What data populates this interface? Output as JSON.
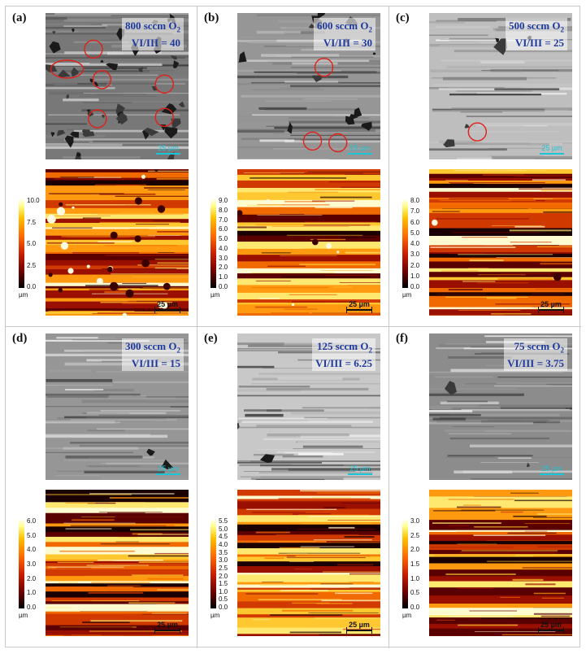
{
  "panels": [
    {
      "label": "(a)",
      "flow": "800 sccm O",
      "sub": "2",
      "ratio": "VI/III = 40",
      "sem_scale": "25 µm",
      "afm_scale": "25 µm",
      "unit": "µm",
      "ticks": [
        "10.0",
        "7.5",
        "5.0",
        "2.5",
        "0.0"
      ],
      "circles": 6,
      "roughness": "high"
    },
    {
      "label": "(b)",
      "flow": "600 sccm O",
      "sub": "2",
      "ratio": "VI/III = 30",
      "sem_scale": "25 µm",
      "afm_scale": "25 µm",
      "unit": "µm",
      "ticks": [
        "9.0",
        "8.0",
        "7.0",
        "6.0",
        "5.0",
        "4.0",
        "3.0",
        "2.0",
        "1.0",
        "0.0"
      ],
      "circles": 3,
      "roughness": "medium"
    },
    {
      "label": "(c)",
      "flow": "500 sccm O",
      "sub": "2",
      "ratio": "VI/III = 25",
      "sem_scale": "25 µm",
      "afm_scale": "25 µm",
      "unit": "µm",
      "ticks": [
        "8.0",
        "7.0",
        "6.0",
        "5.0",
        "4.0",
        "3.0",
        "2.0",
        "1.0",
        "0.0"
      ],
      "circles": 1,
      "roughness": "low"
    },
    {
      "label": "(d)",
      "flow": "300 sccm O",
      "sub": "2",
      "ratio": "VI/III = 15",
      "sem_scale": "25 µm",
      "afm_scale": "25 µm",
      "unit": "µm",
      "ticks": [
        "6.0",
        "5.0",
        "4.0",
        "3.0",
        "2.0",
        "1.0",
        "0.0"
      ],
      "circles": 0,
      "roughness": "smooth"
    },
    {
      "label": "(e)",
      "flow": "125 sccm O",
      "sub": "2",
      "ratio": "VI/III = 6.25",
      "sem_scale": "25 µm",
      "afm_scale": "25 µm",
      "unit": "µm",
      "ticks": [
        "5.5",
        "5.0",
        "4.5",
        "4.0",
        "3.5",
        "3.0",
        "2.5",
        "2.0",
        "1.5",
        "1.0",
        "0.5",
        "0.0"
      ],
      "circles": 0,
      "roughness": "smooth"
    },
    {
      "label": "(f)",
      "flow": "75 sccm O",
      "sub": "2",
      "ratio": "VI/III = 3.75",
      "sem_scale": "25 µm",
      "afm_scale": "25 µm",
      "unit": "µm",
      "ticks": [
        "3.0",
        "2.5",
        "2.0",
        "1.5",
        "1.0",
        "0.5",
        "0.0"
      ],
      "circles": 0,
      "roughness": "smooth"
    }
  ],
  "colors": {
    "condition_text": "#1f3a9e",
    "sem_scale": "#19c6d8",
    "circle": "#e0201a",
    "border": "#c8c8c8"
  }
}
